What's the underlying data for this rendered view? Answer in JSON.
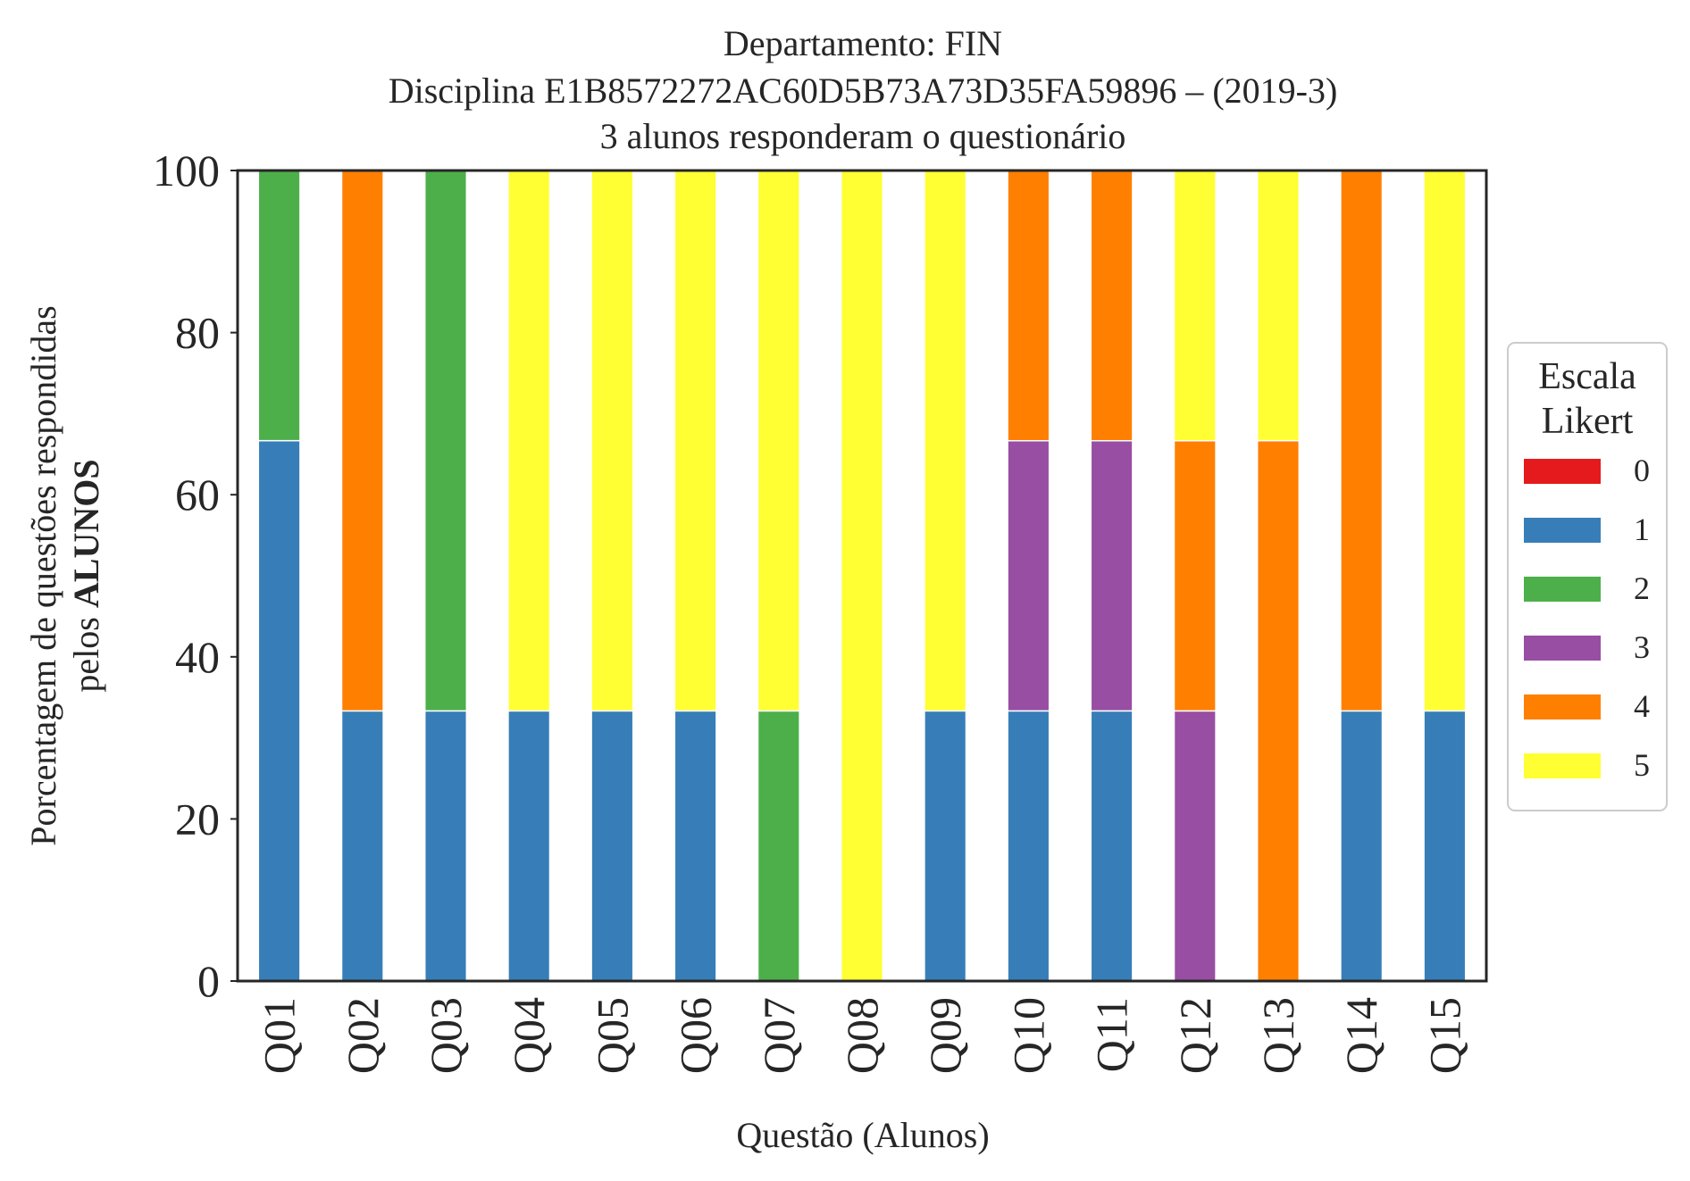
{
  "chart_data": {
    "type": "bar",
    "stacked": true,
    "title_lines": [
      "Departamento: FIN",
      "Disciplina E1B8572272AC60D5B73A73D35FA59896 – (2019-3)",
      "3 alunos responderam o questionário"
    ],
    "xlabel": "Questão (Alunos)",
    "ylabel_line1": "Porcentagem de questões respondidas",
    "ylabel_line2_prefix": "pelos ",
    "ylabel_line2_bold": "ALUNOS",
    "ylim": [
      0,
      100
    ],
    "yticks": [
      0,
      20,
      40,
      60,
      80,
      100
    ],
    "categories": [
      "Q01",
      "Q02",
      "Q03",
      "Q04",
      "Q05",
      "Q06",
      "Q07",
      "Q08",
      "Q09",
      "Q10",
      "Q11",
      "Q12",
      "Q13",
      "Q14",
      "Q15"
    ],
    "legend": {
      "title_lines": [
        "Escala",
        "Likert"
      ],
      "placement": "center-right outside"
    },
    "series": [
      {
        "name": "0",
        "color": "#e41a1c",
        "values": [
          0,
          0,
          0,
          0,
          0,
          0,
          0,
          0,
          0,
          0,
          0,
          0,
          0,
          0,
          0
        ]
      },
      {
        "name": "1",
        "color": "#377eb8",
        "values": [
          66.67,
          33.33,
          33.33,
          33.33,
          33.33,
          33.33,
          0,
          0,
          33.33,
          33.33,
          33.33,
          0,
          0,
          33.33,
          33.33
        ]
      },
      {
        "name": "2",
        "color": "#4daf4a",
        "values": [
          33.33,
          0,
          66.67,
          0,
          0,
          0,
          33.33,
          0,
          0,
          0,
          0,
          0,
          0,
          0,
          0
        ]
      },
      {
        "name": "3",
        "color": "#984ea3",
        "values": [
          0,
          0,
          0,
          0,
          0,
          0,
          0,
          0,
          0,
          33.33,
          33.33,
          33.33,
          0,
          0,
          0
        ]
      },
      {
        "name": "4",
        "color": "#ff7f00",
        "values": [
          0,
          66.67,
          0,
          0,
          0,
          0,
          0,
          0,
          0,
          33.33,
          33.33,
          33.33,
          66.67,
          66.67,
          0
        ]
      },
      {
        "name": "5",
        "color": "#ffff33",
        "values": [
          0,
          0,
          0,
          66.67,
          66.67,
          66.67,
          66.67,
          100,
          66.67,
          0,
          0,
          33.33,
          33.33,
          0,
          66.67
        ]
      }
    ]
  }
}
